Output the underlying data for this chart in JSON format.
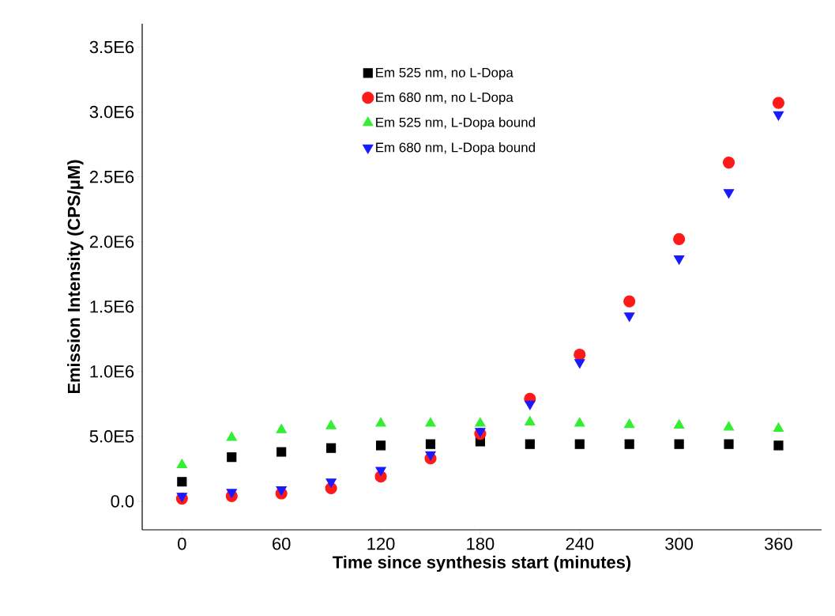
{
  "chart_data": {
    "type": "scatter",
    "xlabel": "Time since synthesis start (minutes)",
    "ylabel": "Emission Intensity (CPS/μM)",
    "x": [
      0,
      30,
      60,
      90,
      120,
      150,
      180,
      210,
      240,
      270,
      300,
      330,
      360
    ],
    "series": [
      {
        "name": "Em 525 nm, no L-Dopa",
        "color": "#000000",
        "marker": "square",
        "values": [
          150000,
          340000,
          380000,
          410000,
          430000,
          440000,
          460000,
          440000,
          440000,
          440000,
          440000,
          440000,
          430000
        ]
      },
      {
        "name": "Em 680 nm, no L-Dopa",
        "color": "#ff1a1a",
        "marker": "circle",
        "values": [
          20000,
          40000,
          60000,
          100000,
          190000,
          330000,
          520000,
          790000,
          1130000,
          1540000,
          2020000,
          2610000,
          3070000
        ]
      },
      {
        "name": "Em 525 nm, L-Dopa bound",
        "color": "#33ee33",
        "marker": "triangle",
        "values": [
          280000,
          490000,
          550000,
          580000,
          600000,
          600000,
          600000,
          610000,
          600000,
          590000,
          585000,
          570000,
          560000
        ]
      },
      {
        "name": "Em 680 nm, L-Dopa bound",
        "color": "#1a1aff",
        "marker": "triangle-down",
        "values": [
          40000,
          70000,
          90000,
          150000,
          240000,
          360000,
          540000,
          750000,
          1070000,
          1430000,
          1870000,
          2380000,
          2980000
        ]
      }
    ],
    "xlim": [
      -24,
      386
    ],
    "ylim": [
      -220000,
      3680000
    ],
    "xticks": [
      0,
      60,
      120,
      180,
      240,
      300,
      360
    ],
    "yticks": [
      {
        "value": 0,
        "label": "0.0"
      },
      {
        "value": 500000,
        "label": "5.0E5"
      },
      {
        "value": 1000000,
        "label": "1.0E6"
      },
      {
        "value": 1500000,
        "label": "1.5E6"
      },
      {
        "value": 2000000,
        "label": "2.0E6"
      },
      {
        "value": 2500000,
        "label": "2.5E6"
      },
      {
        "value": 3000000,
        "label": "3.0E6"
      },
      {
        "value": 3500000,
        "label": "3.5E6"
      }
    ],
    "legend": "top left",
    "grid": false
  }
}
